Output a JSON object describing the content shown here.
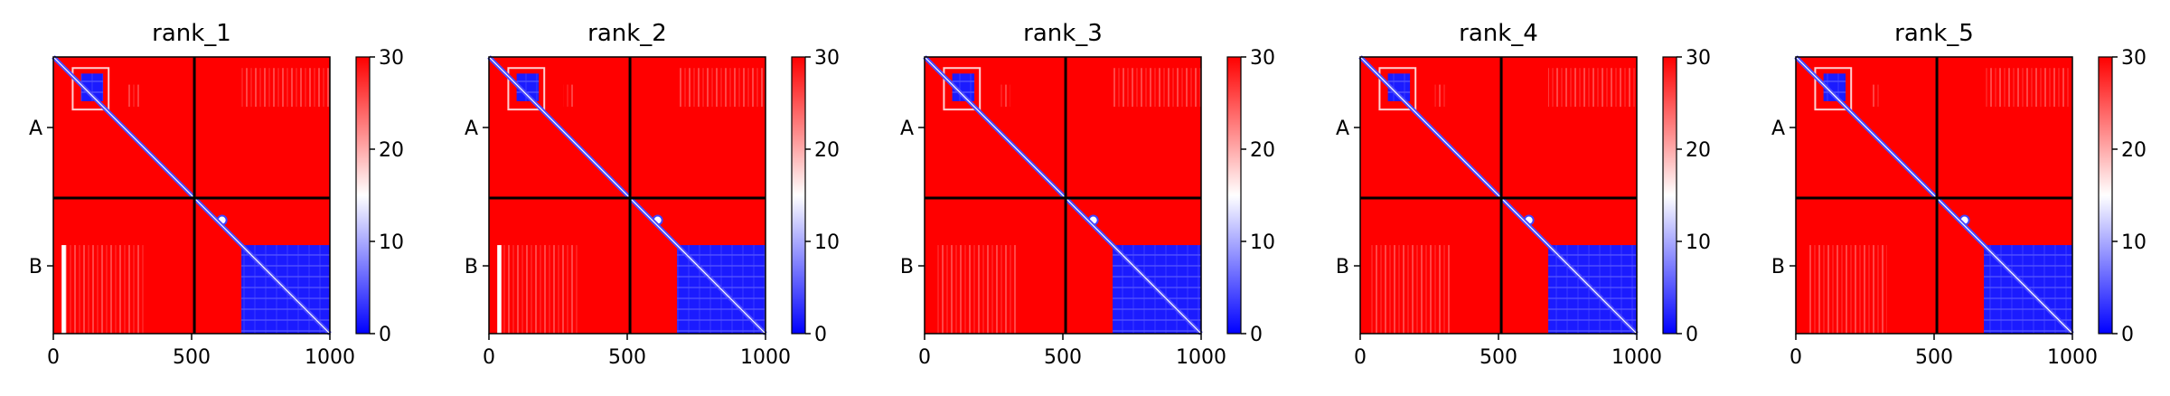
{
  "chart_data": [
    {
      "type": "heatmap",
      "title": "rank_1",
      "x_ticks": [
        "0",
        "500",
        "1000"
      ],
      "y_tick_labels": [
        "A",
        "B"
      ],
      "chain_boundary": 510,
      "length": 1000,
      "xlim": [
        0,
        1000
      ],
      "colorbar": {
        "range": [
          0,
          30
        ],
        "ticks": [
          "0",
          "10",
          "20",
          "30"
        ],
        "colors": [
          "#0000ff",
          "#ffffff",
          "#ff0000"
        ]
      },
      "regions": [
        {
          "name": "chain-B-block",
          "x": [
            680,
            1000
          ],
          "y": [
            680,
            1000
          ],
          "value": 3
        },
        {
          "name": "chain-A-block",
          "x": [
            100,
            180
          ],
          "y": [
            60,
            160
          ],
          "value": 3
        },
        {
          "name": "inter-stripe",
          "x": [
            30,
            45
          ],
          "y": [
            680,
            1000
          ],
          "value": 8
        }
      ]
    },
    {
      "type": "heatmap",
      "title": "rank_2",
      "x_ticks": [
        "0",
        "500",
        "1000"
      ],
      "y_tick_labels": [
        "A",
        "B"
      ],
      "chain_boundary": 510,
      "length": 1000,
      "xlim": [
        0,
        1000
      ],
      "colorbar": {
        "range": [
          0,
          30
        ],
        "ticks": [
          "0",
          "10",
          "20",
          "30"
        ],
        "colors": [
          "#0000ff",
          "#ffffff",
          "#ff0000"
        ]
      },
      "regions": [
        {
          "name": "chain-B-block",
          "x": [
            680,
            1000
          ],
          "y": [
            680,
            1000
          ],
          "value": 3
        },
        {
          "name": "chain-A-block",
          "x": [
            100,
            180
          ],
          "y": [
            60,
            160
          ],
          "value": 3
        },
        {
          "name": "inter-stripe",
          "x": [
            30,
            45
          ],
          "y": [
            680,
            1000
          ],
          "value": 8
        }
      ]
    },
    {
      "type": "heatmap",
      "title": "rank_3",
      "x_ticks": [
        "0",
        "500",
        "1000"
      ],
      "y_tick_labels": [
        "A",
        "B"
      ],
      "chain_boundary": 510,
      "length": 1000,
      "xlim": [
        0,
        1000
      ],
      "colorbar": {
        "range": [
          0,
          30
        ],
        "ticks": [
          "0",
          "10",
          "20",
          "30"
        ],
        "colors": [
          "#0000ff",
          "#ffffff",
          "#ff0000"
        ]
      },
      "regions": [
        {
          "name": "chain-B-block",
          "x": [
            680,
            1000
          ],
          "y": [
            680,
            1000
          ],
          "value": 3
        },
        {
          "name": "chain-A-block",
          "x": [
            100,
            180
          ],
          "y": [
            60,
            160
          ],
          "value": 3
        }
      ]
    },
    {
      "type": "heatmap",
      "title": "rank_4",
      "x_ticks": [
        "0",
        "500",
        "1000"
      ],
      "y_tick_labels": [
        "A",
        "B"
      ],
      "chain_boundary": 510,
      "length": 1000,
      "xlim": [
        0,
        1000
      ],
      "colorbar": {
        "range": [
          0,
          30
        ],
        "ticks": [
          "0",
          "10",
          "20",
          "30"
        ],
        "colors": [
          "#0000ff",
          "#ffffff",
          "#ff0000"
        ]
      },
      "regions": [
        {
          "name": "chain-B-block",
          "x": [
            680,
            1000
          ],
          "y": [
            680,
            1000
          ],
          "value": 3
        },
        {
          "name": "chain-A-block",
          "x": [
            100,
            180
          ],
          "y": [
            60,
            160
          ],
          "value": 3
        }
      ]
    },
    {
      "type": "heatmap",
      "title": "rank_5",
      "x_ticks": [
        "0",
        "500",
        "1000"
      ],
      "y_tick_labels": [
        "A",
        "B"
      ],
      "chain_boundary": 510,
      "length": 1000,
      "xlim": [
        0,
        1000
      ],
      "colorbar": {
        "range": [
          0,
          30
        ],
        "ticks": [
          "0",
          "10",
          "20",
          "30"
        ],
        "colors": [
          "#0000ff",
          "#ffffff",
          "#ff0000"
        ]
      },
      "regions": [
        {
          "name": "chain-B-block",
          "x": [
            680,
            1000
          ],
          "y": [
            680,
            1000
          ],
          "value": 3
        },
        {
          "name": "chain-A-block",
          "x": [
            100,
            180
          ],
          "y": [
            60,
            160
          ],
          "value": 3
        }
      ]
    }
  ]
}
